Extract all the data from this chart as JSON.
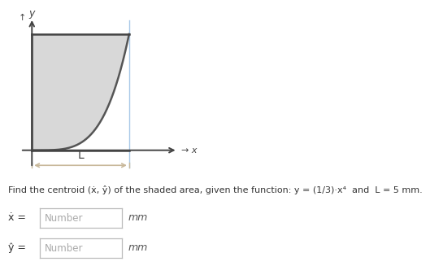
{
  "bg_color": "#ffffff",
  "shade_color_light": "#e8e8e8",
  "shade_color_dark": "#c8c8c8",
  "curve_color": "#555555",
  "box_color": "#444444",
  "axis_color": "#444444",
  "vertical_line_color": "#a8c8e8",
  "L_arrow_color": "#c8b89a",
  "title_text": "Find the centroid (ẋ, ŷ) of the shaded area, given the function: y = (1/3)·x⁴  and  L = 5 mm.",
  "L_label": "L",
  "fig_width": 5.17,
  "fig_height": 3.33,
  "dpi": 100
}
